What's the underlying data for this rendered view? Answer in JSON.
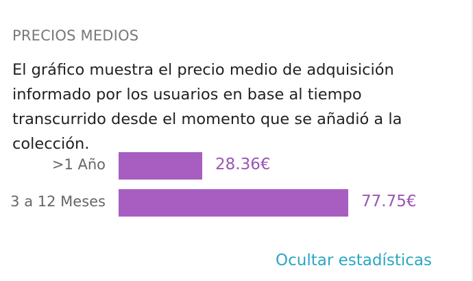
{
  "section": {
    "title": "PRECIOS MEDIOS",
    "description": "El gráfico muestra el precio medio de adquisición informado por los usuarios en base al tiempo transcurrido desde el momento que se añadió a la colección."
  },
  "chart_data": {
    "type": "bar",
    "orientation": "horizontal",
    "categories": [
      ">1 Año",
      "3 a 12 Meses"
    ],
    "values": [
      28.36,
      77.75
    ],
    "value_labels": [
      "28.36€",
      "77.75€"
    ],
    "unit": "€",
    "bar_color": "#a85ec0",
    "value_label_color": "#9a55b5"
  },
  "footer": {
    "hide_stats_label": "Ocultar estadísticas",
    "link_color": "#2aa7c4"
  }
}
